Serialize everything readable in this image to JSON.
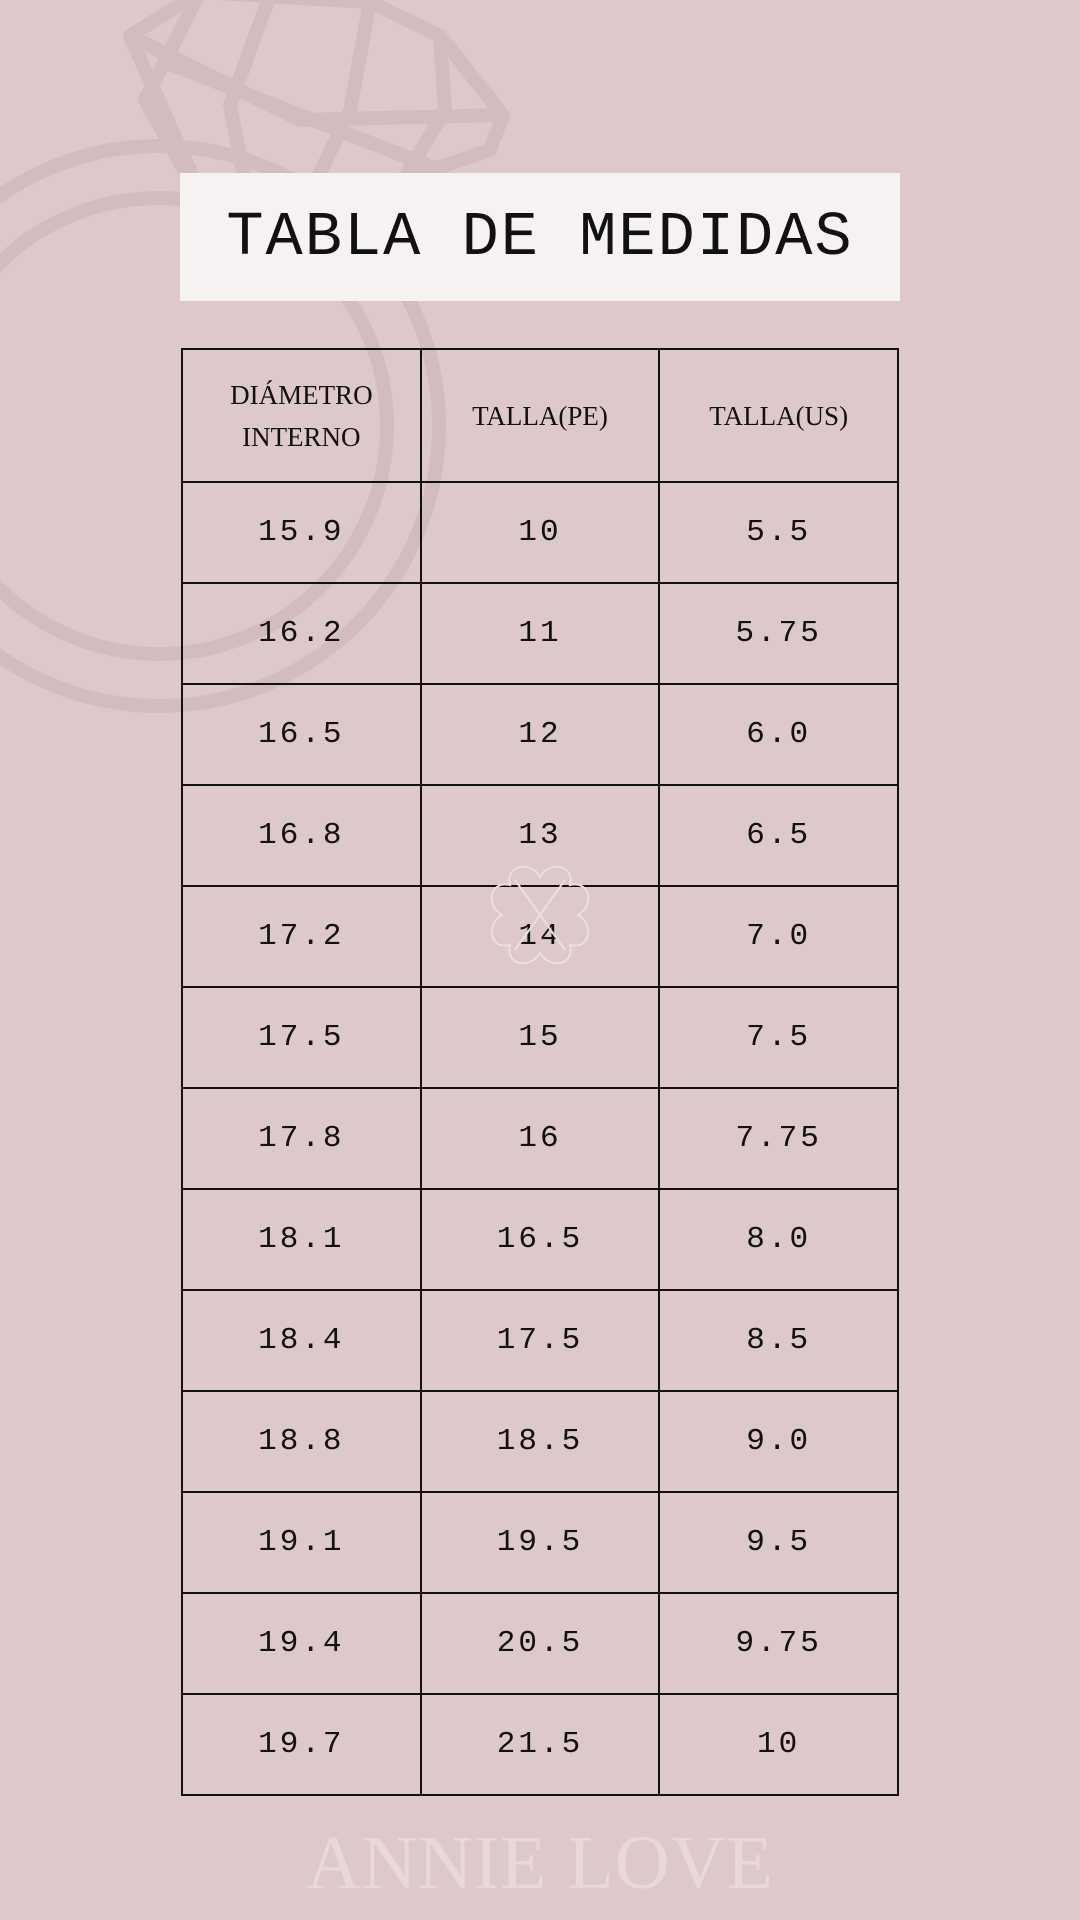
{
  "title": "TABLA DE MEDIDAS",
  "watermark": "ANNIE LOVE",
  "table": {
    "headers": [
      "DIÁMETRO INTERNO",
      "TALLA(PE)",
      "TALLA(US)"
    ],
    "rows": [
      [
        "15.9",
        "10",
        "5.5"
      ],
      [
        "16.2",
        "11",
        "5.75"
      ],
      [
        "16.5",
        "12",
        "6.0"
      ],
      [
        "16.8",
        "13",
        "6.5"
      ],
      [
        "17.2",
        "14",
        "7.0"
      ],
      [
        "17.5",
        "15",
        "7.5"
      ],
      [
        "17.8",
        "16",
        "7.75"
      ],
      [
        "18.1",
        "16.5",
        "8.0"
      ],
      [
        "18.4",
        "17.5",
        "8.5"
      ],
      [
        "18.8",
        "18.5",
        "9.0"
      ],
      [
        "19.1",
        "19.5",
        "9.5"
      ],
      [
        "19.4",
        "20.5",
        "9.75"
      ],
      [
        "19.7",
        "21.5",
        "10"
      ]
    ]
  },
  "colors": {
    "background": "#ddc9ca",
    "title_box": "#f6f2f1",
    "ring_art": "#d3bcbf",
    "text": "#111111"
  }
}
